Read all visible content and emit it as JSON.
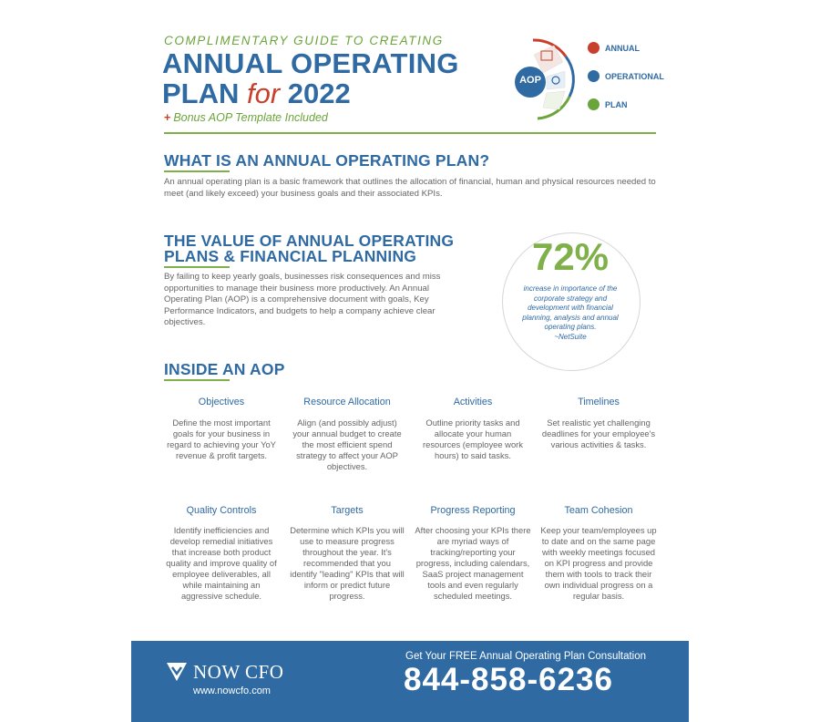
{
  "header": {
    "kicker": "COMPLIMENTARY GUIDE TO CREATING",
    "title_line1": "ANNUAL OPERATING",
    "title_plan": "PLAN ",
    "title_for": "for",
    "title_year": " 2022",
    "bonus_plus": "+",
    "bonus": "Bonus AOP Template Included"
  },
  "logo": {
    "center_label": "AOP",
    "legend": [
      {
        "label": "ANNUAL",
        "color": "#c8402b"
      },
      {
        "label": "OPERATIONAL",
        "color": "#2f6aa3"
      },
      {
        "label": "PLAN",
        "color": "#6ba43a"
      }
    ]
  },
  "section1": {
    "heading": "WHAT IS AN ANNUAL OPERATING PLAN?",
    "body": "An annual operating plan is a basic framework that outlines the allocation of financial, human and physical resources needed to meet (and likely exceed) your business goals and their associated KPIs."
  },
  "section2": {
    "heading_line1": "THE VALUE OF ANNUAL OPERATING",
    "heading_line2": "PLANS & FINANCIAL PLANNING",
    "body": "By failing to keep yearly goals, businesses risk consequences and miss opportunities to manage their business more productively. An Annual Operating Plan (AOP) is a comprehensive document with goals, Key Performance Indicators, and budgets to help a company achieve clear objectives."
  },
  "stat": {
    "value": "72%",
    "text": "increase in importance of the corporate strategy and development with financial planning, analysis and annual operating plans.",
    "source": "~NetSuite"
  },
  "section3": {
    "heading": "INSIDE AN AOP",
    "items": [
      {
        "title": "Objectives",
        "text": "Define the most important goals for your business in regard to achieving your YoY revenue & profit targets."
      },
      {
        "title": "Resource Allocation",
        "text": "Align (and possibly adjust) your annual budget to create the most efficient spend strategy to affect your AOP objectives."
      },
      {
        "title": "Activities",
        "text": "Outline priority tasks and allocate your human resources (employee work hours) to said tasks."
      },
      {
        "title": "Timelines",
        "text": "Set realistic yet challenging deadlines for your employee's various activities & tasks."
      },
      {
        "title": "Quality Controls",
        "text": "Identify inefficiencies and develop remedial initiatives that increase both product quality and improve quality of employee deliverables, all while maintaining an aggressive schedule."
      },
      {
        "title": "Targets",
        "text": "Determine which KPIs you will use to measure progress throughout the year. It's recommended that you identify \"leading\" KPIs that will inform or predict future progress."
      },
      {
        "title": "Progress Reporting",
        "text": "After choosing your KPIs there are myriad ways of tracking/reporting your progress, including calendars, SaaS project management tools and even regularly scheduled meetings."
      },
      {
        "title": "Team Cohesion",
        "text": "Keep your team/employees up to date and on the same page with weekly meetings focused on KPI progress and provide them with tools to track their own individual progress on a regular basis."
      }
    ]
  },
  "footer": {
    "brand": "NOW CFO",
    "url": "www.nowcfo.com",
    "cta": "Get Your FREE Annual Operating Plan Consultation",
    "phone": "844-858-6236",
    "bg_color": "#2f6aa3"
  }
}
